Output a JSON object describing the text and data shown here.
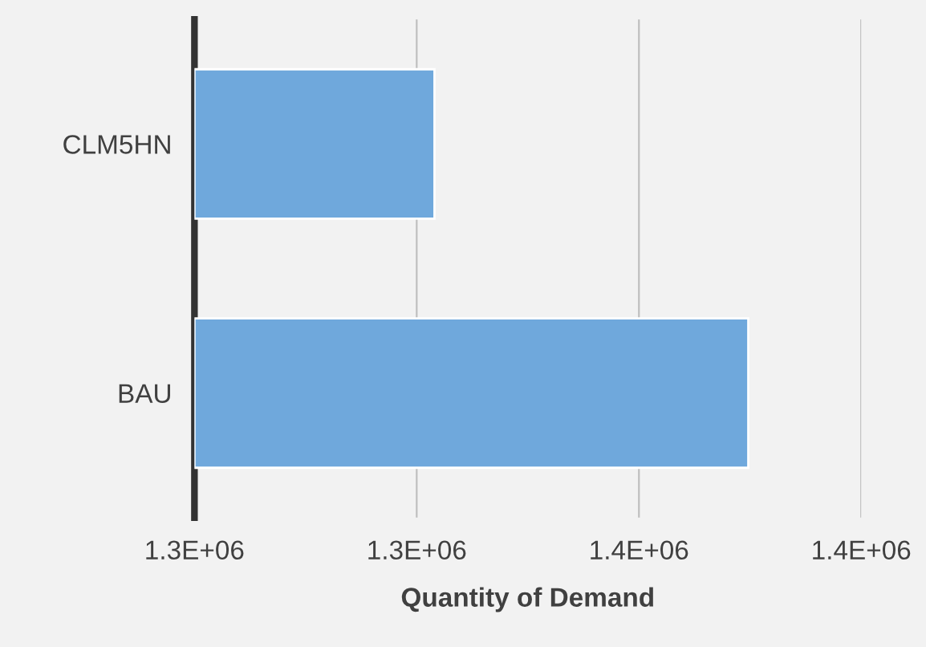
{
  "chart_data": {
    "type": "bar",
    "orientation": "horizontal",
    "xlabel": "Quantity of Demand",
    "categories": [
      "CLM5HN",
      "BAU"
    ],
    "series": [
      {
        "color": "#6fa8dc",
        "values": [
          1304000,
          1374600
        ]
      }
    ],
    "xlim": [
      1250000,
      1400000
    ],
    "xticks": [
      {
        "value": 1250000,
        "label": "1.3E+06"
      },
      {
        "value": 1300000,
        "label": "1.3E+06"
      },
      {
        "value": 1350000,
        "label": "1.4E+06"
      },
      {
        "value": 1400000,
        "label": "1.4E+06"
      }
    ],
    "grid": "x",
    "legend": false
  }
}
